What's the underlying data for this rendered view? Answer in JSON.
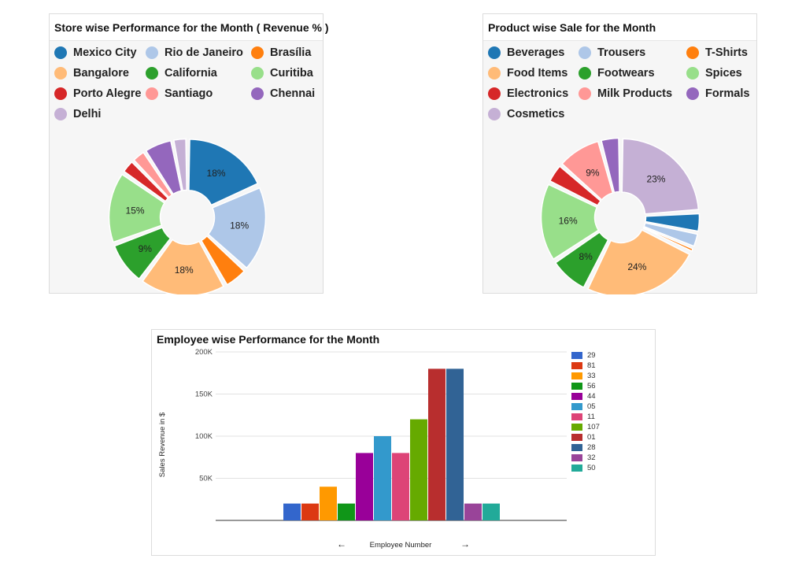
{
  "chart_data": [
    {
      "type": "pie",
      "title": "Store wise Performance for the Month ( Revenue % )",
      "categories": [
        "Mexico City",
        "Rio de Janeiro",
        "Brasília",
        "Bangalore",
        "California",
        "Curitiba",
        "Porto Alegre",
        "Santiago",
        "Chennai",
        "Delhi"
      ],
      "values": [
        18,
        18,
        5,
        18,
        9,
        15,
        3,
        3,
        6,
        3
      ],
      "labels": [
        "18%",
        "18%",
        "",
        "18%",
        "9%",
        "15%",
        "",
        "",
        "",
        ""
      ],
      "colors": [
        "#1f77b4",
        "#aec7e8",
        "#ff7f0e",
        "#ffbb78",
        "#2ca02c",
        "#98df8a",
        "#d62728",
        "#ff9896",
        "#9467bd",
        "#c5b0d5"
      ],
      "legend_position": "top"
    },
    {
      "type": "pie",
      "title": "Product wise Sale for the Month",
      "categories": [
        "Beverages",
        "Trousers",
        "T-Shirts",
        "Food Items",
        "Footwears",
        "Spices",
        "Electronics",
        "Milk Products",
        "Formals",
        "Cosmetics"
      ],
      "slice_order": [
        "Cosmetics",
        "Beverages",
        "Trousers",
        "T-Shirts",
        "Food Items",
        "Footwears",
        "Spices",
        "Electronics",
        "Milk Products",
        "Formals"
      ],
      "values": [
        4,
        3,
        1,
        24,
        8,
        16,
        4,
        9,
        4,
        23
      ],
      "labels": [
        "",
        "",
        "",
        "24%",
        "8%",
        "16%",
        "",
        "9%",
        "",
        "23%"
      ],
      "colors": [
        "#1f77b4",
        "#aec7e8",
        "#ff7f0e",
        "#ffbb78",
        "#2ca02c",
        "#98df8a",
        "#d62728",
        "#ff9896",
        "#9467bd",
        "#c5b0d5"
      ],
      "legend_position": "top"
    },
    {
      "type": "bar",
      "title": "Employee wise Performance for the Month",
      "xlabel": "Employee Number",
      "ylabel": "Sales Revenue in $",
      "ylim": [
        0,
        200000
      ],
      "yticks": [
        50000,
        100000,
        150000,
        200000
      ],
      "ytick_labels": [
        "50K",
        "100K",
        "150K",
        "200K"
      ],
      "categories": [
        "29",
        "81",
        "33",
        "56",
        "44",
        "05",
        "11",
        "107",
        "01",
        "28",
        "32",
        "50"
      ],
      "values": [
        20000,
        20000,
        40000,
        20000,
        80000,
        100000,
        80000,
        120000,
        180000,
        180000,
        20000,
        20000
      ],
      "colors": [
        "#3366cc",
        "#dc3912",
        "#ff9900",
        "#109618",
        "#990099",
        "#3399cc",
        "#dd4477",
        "#66aa00",
        "#b82e2e",
        "#316395",
        "#994499",
        "#22aa99"
      ],
      "grid": true,
      "legend_position": "right"
    }
  ],
  "nav": {
    "prev_arrow": "←",
    "next_arrow": "→"
  }
}
